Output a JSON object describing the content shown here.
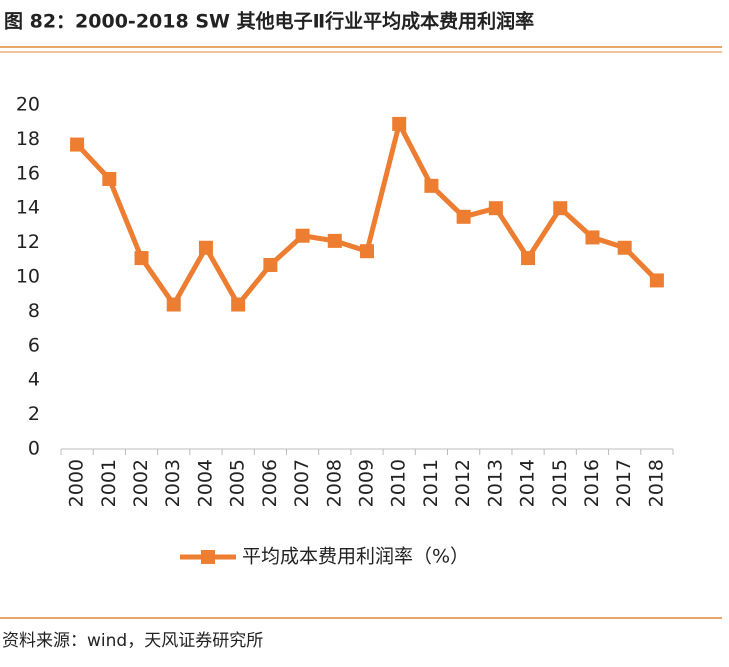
{
  "chart_data": {
    "type": "line",
    "title": "图 82：2000-2018 SW 其他电子Ⅱ行业平均成本费用利润率",
    "source": "资料来源：wind，天风证券研究所",
    "categories": [
      "2000",
      "2001",
      "2002",
      "2003",
      "2004",
      "2005",
      "2006",
      "2007",
      "2008",
      "2009",
      "2010",
      "2011",
      "2012",
      "2013",
      "2014",
      "2015",
      "2016",
      "2017",
      "2018"
    ],
    "series": [
      {
        "name": "平均成本费用利润率（%）",
        "color": "#ED7D31",
        "values": [
          17.7,
          15.7,
          11.1,
          8.4,
          11.7,
          8.4,
          10.7,
          12.4,
          12.1,
          11.5,
          18.9,
          15.3,
          13.5,
          14.0,
          11.1,
          14.0,
          12.3,
          11.7,
          9.8
        ]
      }
    ],
    "ylim": [
      0,
      20
    ],
    "yticks": [
      0,
      2,
      4,
      6,
      8,
      10,
      12,
      14,
      16,
      18,
      20
    ],
    "grid": false,
    "legend": "bottom"
  }
}
